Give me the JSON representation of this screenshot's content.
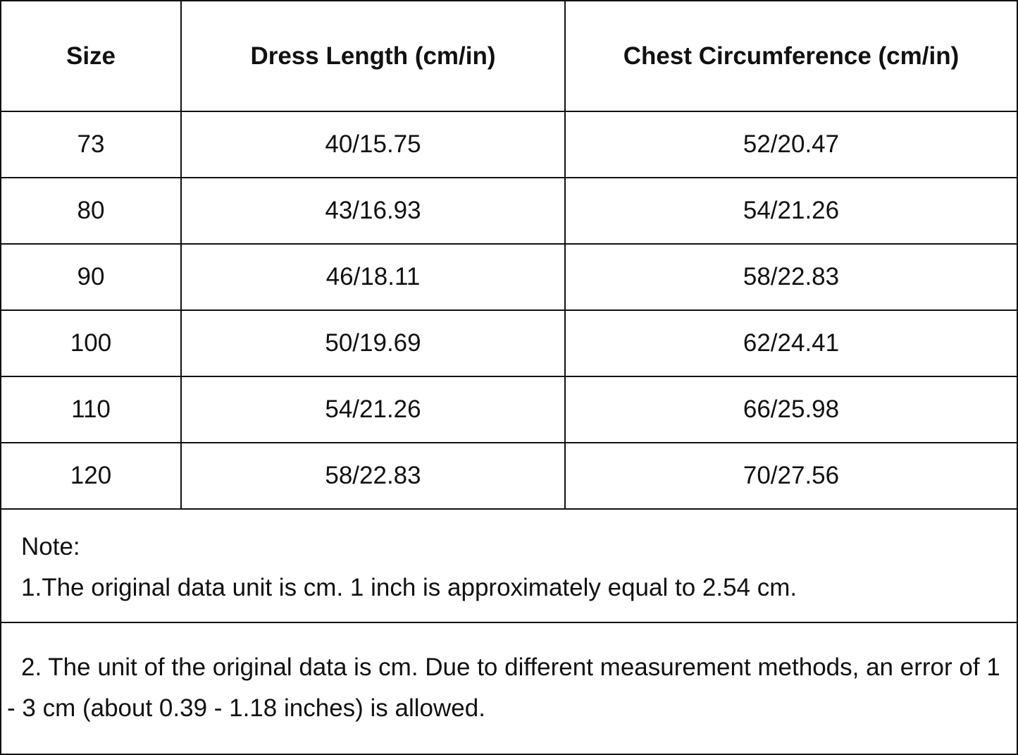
{
  "table": {
    "headers": [
      "Size",
      "Dress Length (cm/in)",
      "Chest Circumference (cm/in)"
    ],
    "rows": [
      [
        "73",
        "40/15.75",
        "52/20.47"
      ],
      [
        "80",
        "43/16.93",
        "54/21.26"
      ],
      [
        "90",
        "46/18.11",
        "58/22.83"
      ],
      [
        "100",
        "50/19.69",
        "62/24.41"
      ],
      [
        "110",
        "54/21.26",
        "66/25.98"
      ],
      [
        "120",
        "58/22.83",
        "70/27.56"
      ]
    ]
  },
  "notes": {
    "title": "Note:",
    "note1": "1.The original data unit is cm. 1 inch is approximately equal to 2.54 cm.",
    "note2": "2. The unit of the original data is cm. Due to different measurement methods, an error of 1 - 3 cm (about 0.39 - 1.18 inches) is allowed."
  }
}
